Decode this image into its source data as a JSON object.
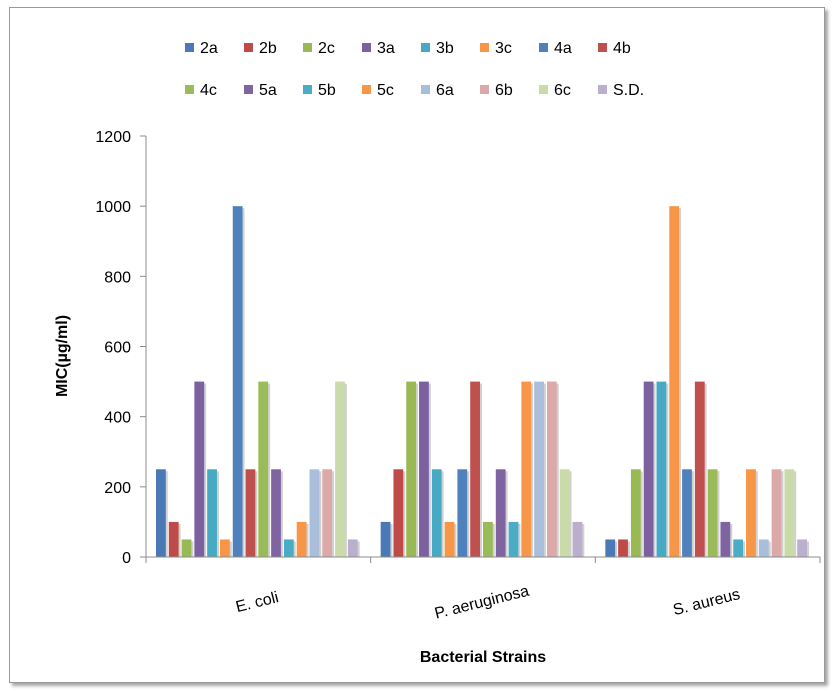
{
  "chart_data": {
    "type": "bar",
    "title": "",
    "xlabel": "Bacterial Strains",
    "ylabel": "MIC(µg/ml)",
    "ylim": [
      0,
      1200
    ],
    "yticks": [
      0,
      200,
      400,
      600,
      800,
      1000,
      1200
    ],
    "grid": false,
    "legend_position": "top",
    "categories": [
      "E. coli",
      "P. aeruginosa",
      "S. aureus"
    ],
    "series": [
      {
        "name": "2a",
        "color": "#4a7ab5",
        "values": [
          250,
          100,
          50
        ]
      },
      {
        "name": "2b",
        "color": "#be4b48",
        "values": [
          100,
          250,
          50
        ]
      },
      {
        "name": "2c",
        "color": "#98b954",
        "values": [
          50,
          500,
          250
        ]
      },
      {
        "name": "3a",
        "color": "#7d60a0",
        "values": [
          500,
          500,
          500
        ]
      },
      {
        "name": "3b",
        "color": "#46aac5",
        "values": [
          250,
          250,
          500
        ]
      },
      {
        "name": "3c",
        "color": "#f79646",
        "values": [
          50,
          100,
          1000
        ]
      },
      {
        "name": "4a",
        "color": "#4f81bd",
        "values": [
          1000,
          250,
          250
        ]
      },
      {
        "name": "4b",
        "color": "#c0504d",
        "values": [
          250,
          500,
          500
        ]
      },
      {
        "name": "4c",
        "color": "#9bbb59",
        "values": [
          500,
          100,
          250
        ]
      },
      {
        "name": "5a",
        "color": "#8064a2",
        "values": [
          250,
          250,
          100
        ]
      },
      {
        "name": "5b",
        "color": "#4bacc6",
        "values": [
          50,
          100,
          50
        ]
      },
      {
        "name": "5c",
        "color": "#f79646",
        "values": [
          100,
          500,
          250
        ]
      },
      {
        "name": "6a",
        "color": "#a9bedb",
        "values": [
          250,
          500,
          50
        ]
      },
      {
        "name": "6b",
        "color": "#dba9a8",
        "values": [
          250,
          500,
          250
        ]
      },
      {
        "name": "6c",
        "color": "#cadba9",
        "values": [
          500,
          250,
          250
        ]
      },
      {
        "name": "S.D.",
        "color": "#bcaecd",
        "values": [
          50,
          100,
          50
        ]
      }
    ]
  }
}
